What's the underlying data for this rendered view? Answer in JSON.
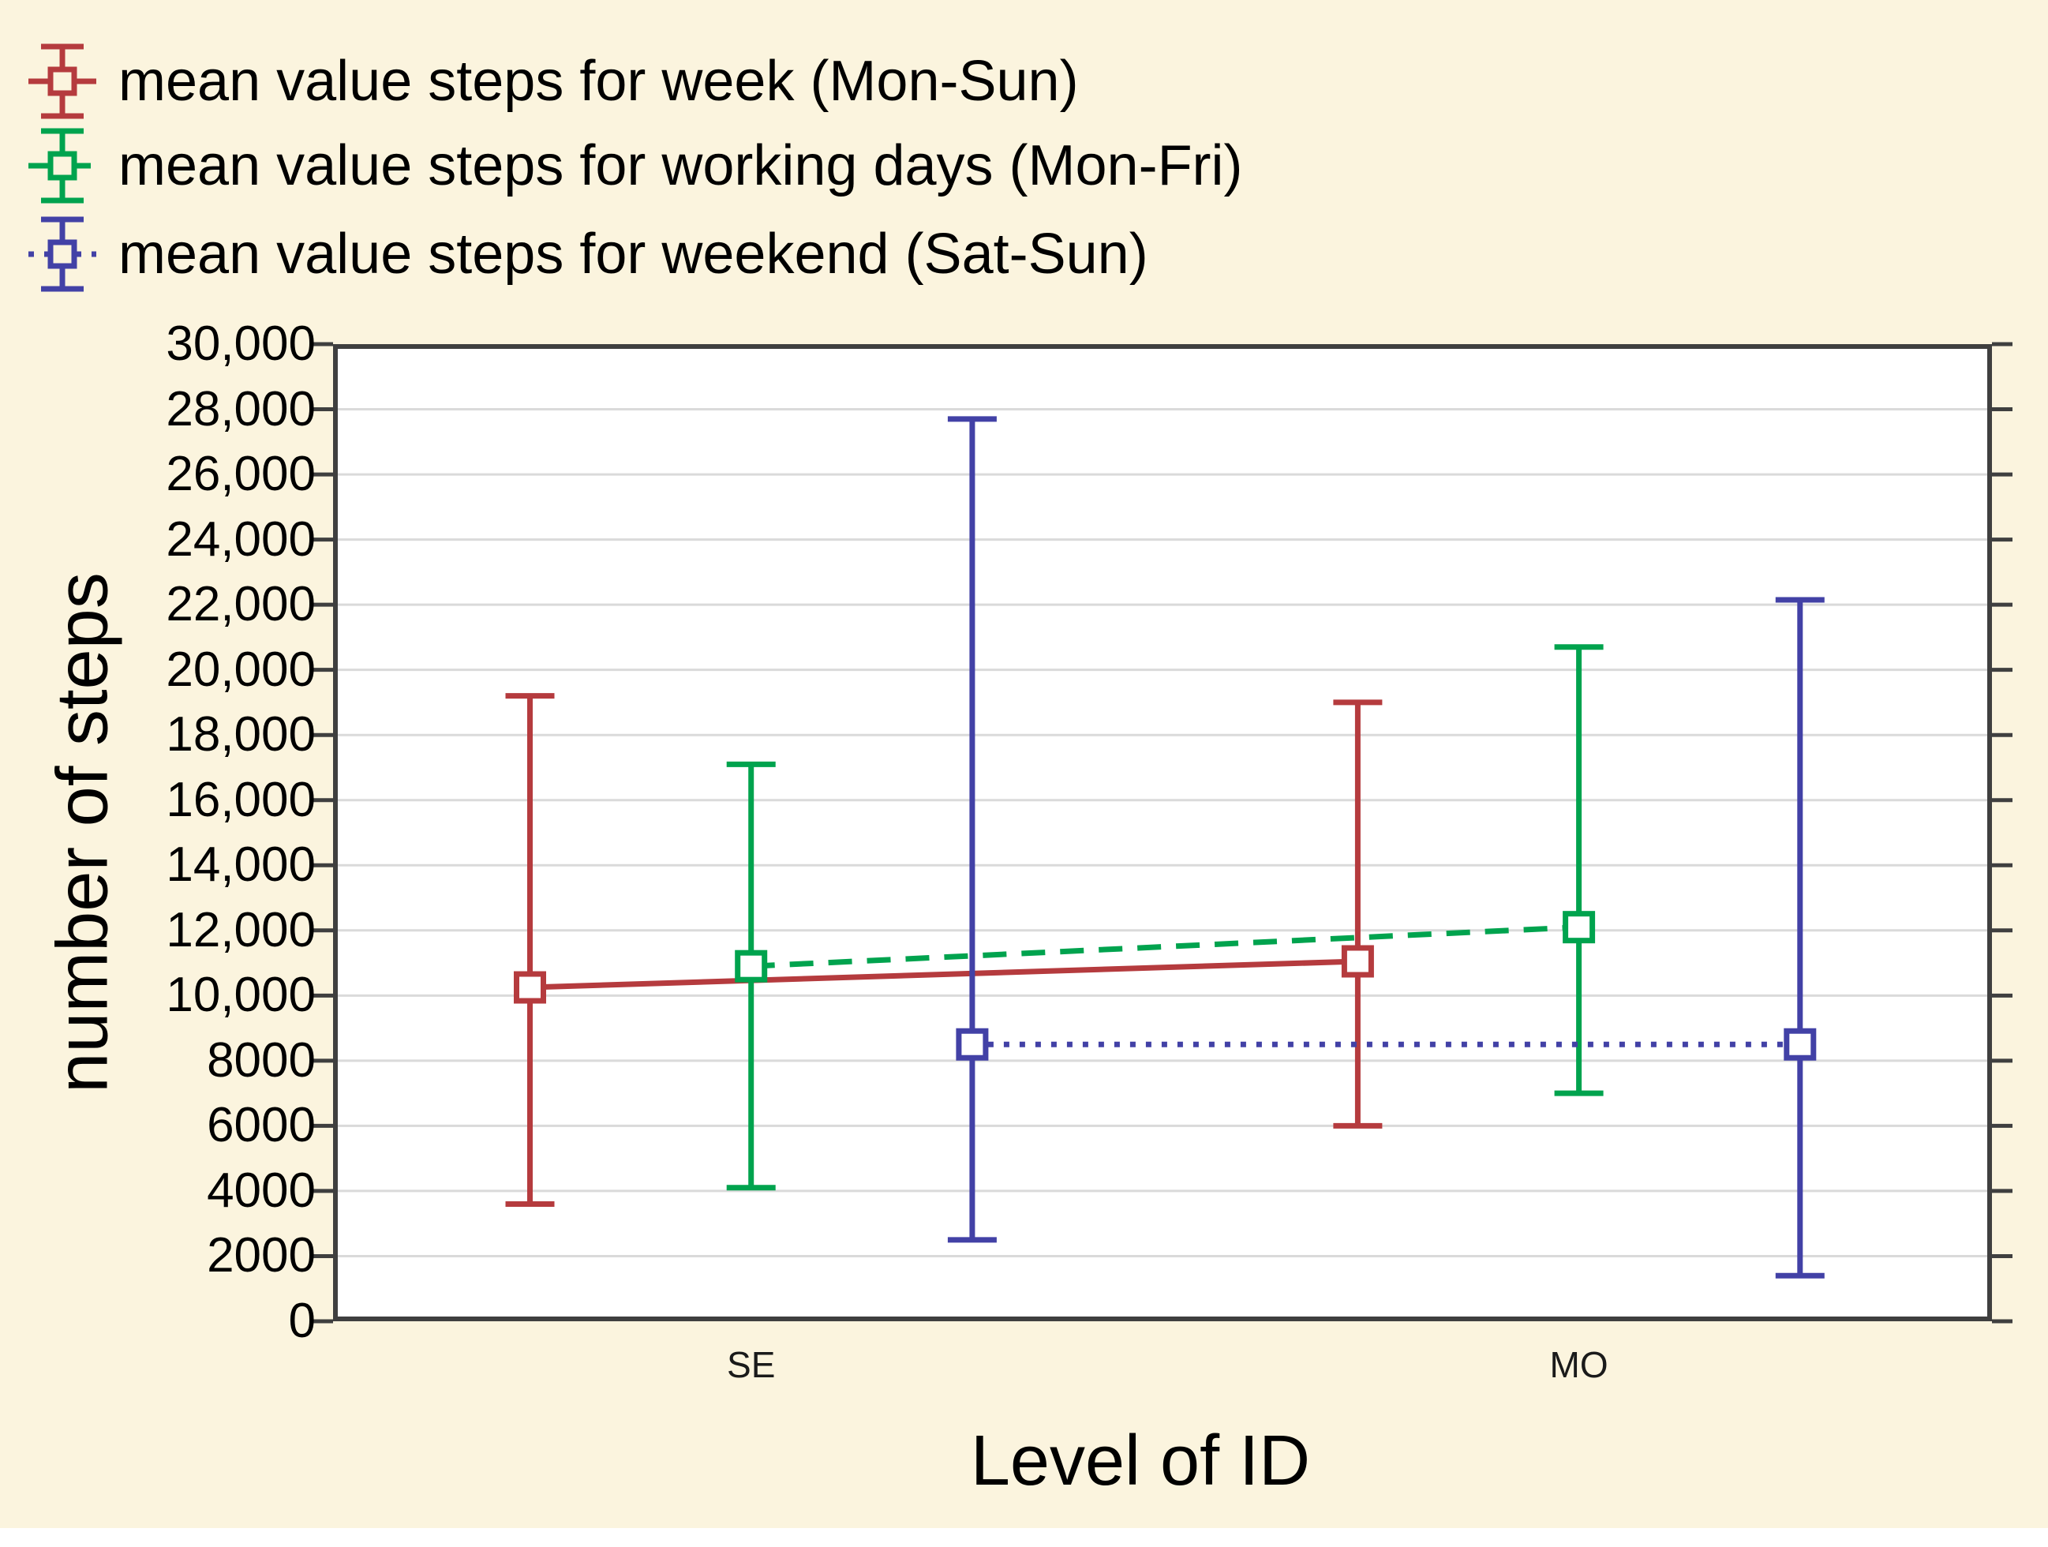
{
  "background_color": "#FBF4DE",
  "frame_color": "#3F3F3F",
  "grid_color": "#DADADA",
  "legend": {
    "items": [
      {
        "label": "mean value steps for week (Mon-Sun)",
        "color": "#B53B3E",
        "line_style": "solid",
        "marker": "square-open-icon"
      },
      {
        "label": "mean value steps for working days (Mon-Fri)",
        "color": "#00A34E",
        "line_style": "dashed",
        "marker": "square-open-icon"
      },
      {
        "label": "mean value steps for weekend (Sat-Sun)",
        "color": "#4241A6",
        "line_style": "dotted",
        "marker": "square-open-icon"
      }
    ]
  },
  "chart_data": {
    "type": "line",
    "subtype": "means-with-min-max-whiskers",
    "title": "",
    "xlabel": "Level of ID",
    "ylabel": "number of steps",
    "categories": [
      "SE",
      "MO"
    ],
    "ylim": [
      0,
      30000
    ],
    "y_step": 2000,
    "y_ticks": [
      "30,000",
      "28,000",
      "26,000",
      "24,000",
      "22,000",
      "20,000",
      "18,000",
      "16,000",
      "14,000",
      "12,000",
      "10,000",
      "8000",
      "6000",
      "4000",
      "2000",
      "0"
    ],
    "grid": "horizontal",
    "legend_position": "top-left",
    "series": [
      {
        "name": "mean value steps for week (Mon-Sun)",
        "color": "#B53B3E",
        "line_style": "solid",
        "marker": "square-open",
        "means": [
          10250,
          11050
        ],
        "whisker_low": [
          3600,
          6000
        ],
        "whisker_high": [
          19200,
          19000
        ]
      },
      {
        "name": "mean value steps for working days (Mon-Fri)",
        "color": "#00A34E",
        "line_style": "dashed",
        "marker": "square-open",
        "means": [
          10900,
          12100
        ],
        "whisker_low": [
          4100,
          7000
        ],
        "whisker_high": [
          17100,
          20700
        ]
      },
      {
        "name": "mean value steps for weekend (Sat-Sun)",
        "color": "#4241A6",
        "line_style": "dotted",
        "marker": "square-open",
        "means": [
          8500,
          8500
        ],
        "whisker_low": [
          2500,
          1400
        ],
        "whisker_high": [
          27700,
          22150
        ]
      }
    ]
  }
}
